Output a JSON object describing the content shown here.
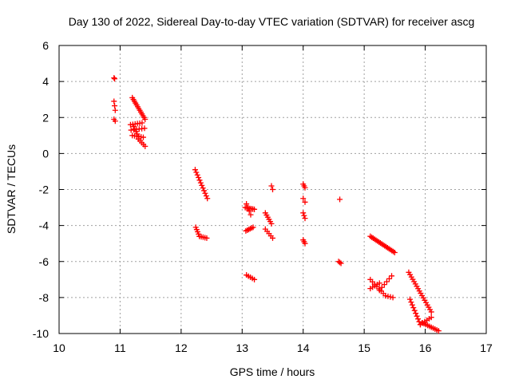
{
  "chart_data": {
    "type": "scatter",
    "title": "Day 130 of 2022, Sidereal Day-to-day VTEC variation (SDTVAR) for receiver ascg",
    "xlabel": "GPS time / hours",
    "ylabel": "SDTVAR / TECUs",
    "xlim": [
      10,
      17
    ],
    "ylim": [
      -10,
      6
    ],
    "xticks": [
      "10",
      "11",
      "12",
      "13",
      "14",
      "15",
      "16",
      "17"
    ],
    "yticks": [
      "-10",
      "-8",
      "-6",
      "-4",
      "-2",
      "0",
      "2",
      "4",
      "6"
    ],
    "grid": true,
    "marker": "plus",
    "color": "#ff0000",
    "series": [
      {
        "name": "SDTVAR",
        "segments": [
          {
            "x0": 10.9,
            "y0": 4.2,
            "x1": 10.91,
            "y1": 4.15,
            "n": 2
          },
          {
            "x0": 10.9,
            "y0": 2.9,
            "x1": 10.92,
            "y1": 2.4,
            "n": 3
          },
          {
            "x0": 10.9,
            "y0": 1.9,
            "x1": 10.92,
            "y1": 1.8,
            "n": 2
          },
          {
            "x0": 11.2,
            "y0": 3.1,
            "x1": 11.41,
            "y1": 1.9,
            "n": 13
          },
          {
            "x0": 11.17,
            "y0": 1.6,
            "x1": 11.36,
            "y1": 1.7,
            "n": 6
          },
          {
            "x0": 11.18,
            "y0": 1.3,
            "x1": 11.4,
            "y1": 1.4,
            "n": 6
          },
          {
            "x0": 11.2,
            "y0": 1.0,
            "x1": 11.38,
            "y1": 0.9,
            "n": 6
          },
          {
            "x0": 11.3,
            "y0": 0.8,
            "x1": 11.41,
            "y1": 0.4,
            "n": 5
          },
          {
            "x0": 11.22,
            "y0": 1.5,
            "x1": 11.3,
            "y1": 0.95,
            "n": 5
          },
          {
            "x0": 12.23,
            "y0": -0.9,
            "x1": 12.43,
            "y1": -2.5,
            "n": 12
          },
          {
            "x0": 12.24,
            "y0": -4.1,
            "x1": 12.3,
            "y1": -4.6,
            "n": 5
          },
          {
            "x0": 12.3,
            "y0": -4.6,
            "x1": 12.42,
            "y1": -4.7,
            "n": 5
          },
          {
            "x0": 13.05,
            "y0": -3.0,
            "x1": 13.2,
            "y1": -3.1,
            "n": 7
          },
          {
            "x0": 13.07,
            "y0": -2.8,
            "x1": 13.14,
            "y1": -3.4,
            "n": 4
          },
          {
            "x0": 13.06,
            "y0": -4.3,
            "x1": 13.18,
            "y1": -4.1,
            "n": 6
          },
          {
            "x0": 13.07,
            "y0": -6.75,
            "x1": 13.2,
            "y1": -7.0,
            "n": 5
          },
          {
            "x0": 13.38,
            "y0": -3.3,
            "x1": 13.48,
            "y1": -3.9,
            "n": 6
          },
          {
            "x0": 13.38,
            "y0": -4.2,
            "x1": 13.5,
            "y1": -4.7,
            "n": 5
          },
          {
            "x0": 13.48,
            "y0": -1.8,
            "x1": 13.5,
            "y1": -2.0,
            "n": 2
          },
          {
            "x0": 14.0,
            "y0": -1.7,
            "x1": 14.03,
            "y1": -1.9,
            "n": 3
          },
          {
            "x0": 14.0,
            "y0": -2.5,
            "x1": 14.03,
            "y1": -2.7,
            "n": 2
          },
          {
            "x0": 14.0,
            "y0": -3.3,
            "x1": 14.03,
            "y1": -3.6,
            "n": 3
          },
          {
            "x0": 14.0,
            "y0": -4.8,
            "x1": 14.03,
            "y1": -5.0,
            "n": 3
          },
          {
            "x0": 14.6,
            "y0": -2.55,
            "x1": 14.6,
            "y1": -2.55,
            "n": 1
          },
          {
            "x0": 14.58,
            "y0": -6.0,
            "x1": 14.62,
            "y1": -6.1,
            "n": 3
          },
          {
            "x0": 15.1,
            "y0": -4.6,
            "x1": 15.5,
            "y1": -5.5,
            "n": 18
          },
          {
            "x0": 15.1,
            "y0": -7.0,
            "x1": 15.35,
            "y1": -7.9,
            "n": 8
          },
          {
            "x0": 15.1,
            "y0": -7.5,
            "x1": 15.25,
            "y1": -7.2,
            "n": 5
          },
          {
            "x0": 15.25,
            "y0": -7.6,
            "x1": 15.45,
            "y1": -6.8,
            "n": 6
          },
          {
            "x0": 15.35,
            "y0": -7.9,
            "x1": 15.47,
            "y1": -8.0,
            "n": 4
          },
          {
            "x0": 15.73,
            "y0": -6.6,
            "x1": 16.1,
            "y1": -8.8,
            "n": 18
          },
          {
            "x0": 15.75,
            "y0": -8.1,
            "x1": 15.92,
            "y1": -9.5,
            "n": 10
          },
          {
            "x0": 15.95,
            "y0": -9.4,
            "x1": 16.22,
            "y1": -9.85,
            "n": 10
          },
          {
            "x0": 15.92,
            "y0": -9.5,
            "x1": 16.1,
            "y1": -9.1,
            "n": 6
          }
        ]
      }
    ]
  }
}
